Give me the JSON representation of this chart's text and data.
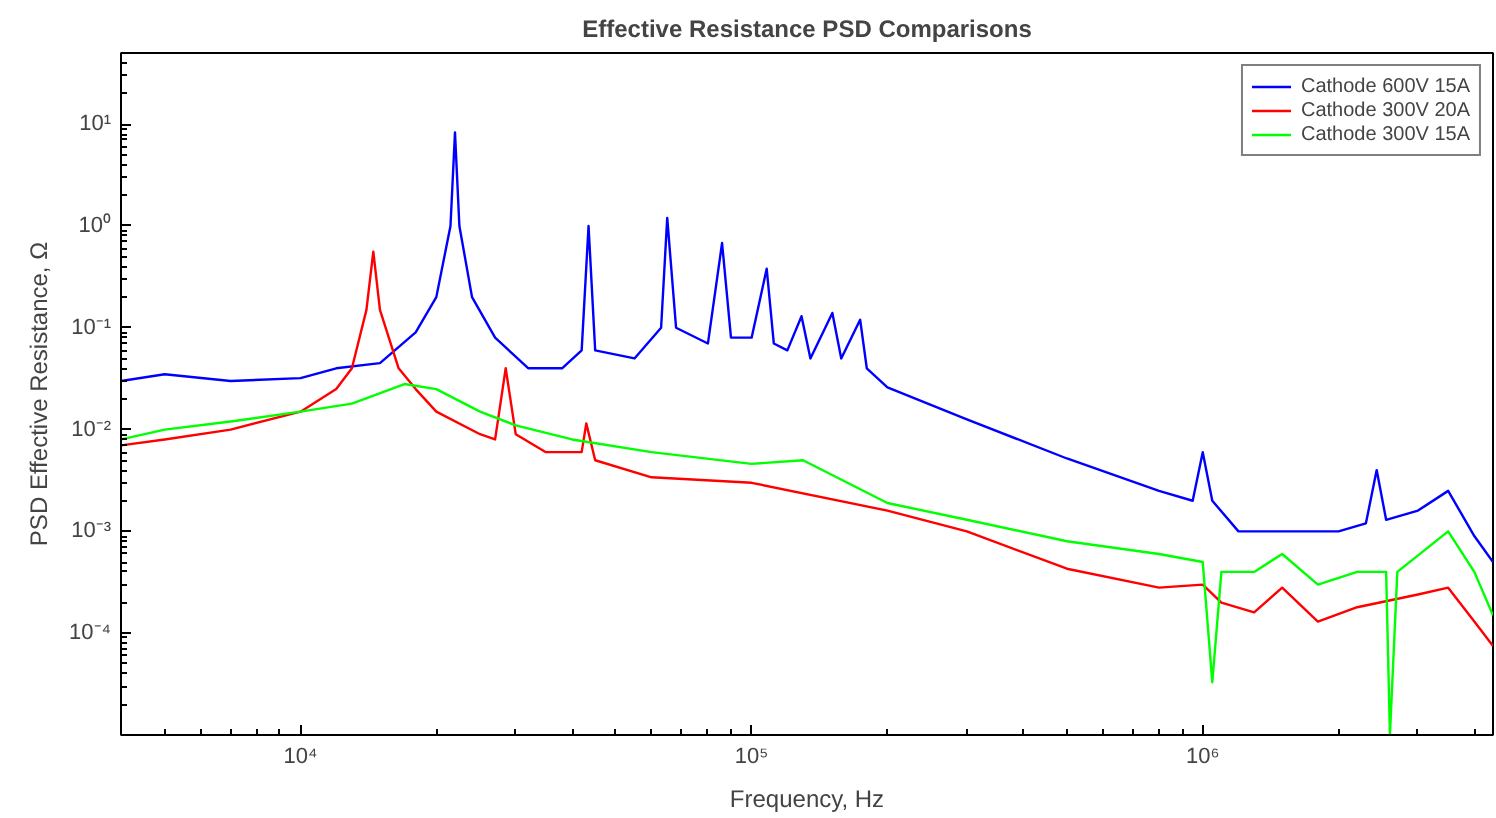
{
  "chart_data": {
    "type": "line",
    "title": "Effective Resistance PSD Comparisons",
    "xlabel": "Frequency, Hz",
    "ylabel": "PSD Effective Resistance, Ω",
    "log": "xy",
    "grid": false,
    "legend": "top right",
    "line_style": "solid",
    "marker": "none",
    "xlim": [
      4000,
      4400000
    ],
    "ylim": [
      1e-05,
      50
    ],
    "xticks": [
      {
        "value": 10000,
        "label": "10⁴"
      },
      {
        "value": 100000,
        "label": "10⁵"
      },
      {
        "value": 1000000,
        "label": "10⁶"
      }
    ],
    "yticks": [
      {
        "value": 0.0001,
        "label": "10⁻⁴"
      },
      {
        "value": 0.001,
        "label": "10⁻³"
      },
      {
        "value": 0.01,
        "label": "10⁻²"
      },
      {
        "value": 0.1,
        "label": "10⁻¹"
      },
      {
        "value": 1,
        "label": "10⁰"
      },
      {
        "value": 10,
        "label": "10¹"
      }
    ],
    "series": [
      {
        "name": "Cathode 600V 15A",
        "color": "#0000ff",
        "x": [
          4000,
          5000,
          7000,
          10000,
          12000,
          15000,
          18000,
          20000,
          21500,
          22000,
          22500,
          24000,
          27000,
          32000,
          38000,
          42000,
          43500,
          45000,
          55000,
          63000,
          65000,
          68000,
          80000,
          86000,
          90000,
          100000,
          108000,
          112000,
          120000,
          129000,
          135000,
          151000,
          158000,
          174000,
          180000,
          200000,
          300000,
          500000,
          800000,
          950000,
          1000000,
          1050000,
          1200000,
          1500000,
          2000000,
          2300000,
          2430000,
          2550000,
          3000000,
          3500000,
          4000000,
          4400000
        ],
        "values": [
          0.03,
          0.035,
          0.03,
          0.032,
          0.04,
          0.045,
          0.09,
          0.2,
          1.0,
          8.3,
          1.0,
          0.2,
          0.08,
          0.04,
          0.04,
          0.06,
          1.0,
          0.06,
          0.05,
          0.1,
          1.2,
          0.1,
          0.07,
          0.68,
          0.08,
          0.08,
          0.38,
          0.07,
          0.06,
          0.13,
          0.05,
          0.14,
          0.05,
          0.12,
          0.04,
          0.026,
          0.0126,
          0.0052,
          0.0025,
          0.002,
          0.006,
          0.002,
          0.001,
          0.001,
          0.001,
          0.0012,
          0.004,
          0.0013,
          0.0016,
          0.0025,
          0.0009,
          0.0005
        ]
      },
      {
        "name": "Cathode 300V 20A",
        "color": "#ff0000",
        "x": [
          4000,
          5000,
          7000,
          10000,
          12000,
          13000,
          14000,
          14500,
          15000,
          16500,
          18000,
          20000,
          25000,
          27000,
          28500,
          30000,
          35000,
          42000,
          43000,
          45000,
          60000,
          100000,
          200000,
          300000,
          500000,
          800000,
          1000000,
          1100000,
          1300000,
          1500000,
          1800000,
          2200000,
          3000000,
          3500000,
          4000000,
          4400000
        ],
        "values": [
          0.007,
          0.008,
          0.01,
          0.015,
          0.025,
          0.04,
          0.15,
          0.56,
          0.15,
          0.04,
          0.025,
          0.015,
          0.009,
          0.008,
          0.04,
          0.009,
          0.006,
          0.006,
          0.0115,
          0.005,
          0.0034,
          0.003,
          0.0016,
          0.001,
          0.00043,
          0.00028,
          0.0003,
          0.0002,
          0.00016,
          0.00028,
          0.00013,
          0.00018,
          0.00024,
          0.00028,
          0.00013,
          7.5e-05
        ]
      },
      {
        "name": "Cathode 300V 15A",
        "color": "#00ff00",
        "x": [
          4000,
          5000,
          7000,
          10000,
          13000,
          17000,
          20000,
          25000,
          30000,
          40000,
          60000,
          100000,
          130000,
          200000,
          300000,
          500000,
          800000,
          1000000,
          1050000,
          1100000,
          1300000,
          1500000,
          1800000,
          2200000,
          2550000,
          2600000,
          2700000,
          3500000,
          4000000,
          4400000
        ],
        "values": [
          0.008,
          0.01,
          0.012,
          0.015,
          0.018,
          0.028,
          0.025,
          0.015,
          0.011,
          0.008,
          0.006,
          0.0046,
          0.005,
          0.0019,
          0.0013,
          0.0008,
          0.0006,
          0.0005,
          3.3e-05,
          0.0004,
          0.0004,
          0.0006,
          0.0003,
          0.0004,
          0.0004,
          1e-05,
          0.0004,
          0.001,
          0.0004,
          0.00015
        ]
      }
    ]
  }
}
